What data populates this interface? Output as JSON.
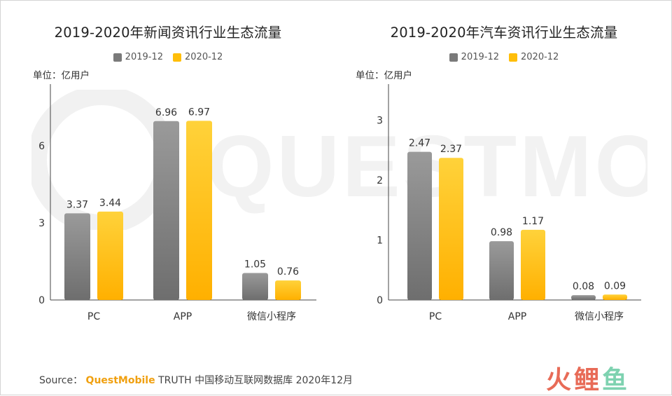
{
  "watermark": {
    "text": "QUESTMOBILE"
  },
  "source": {
    "prefix": "Source：",
    "brand": "QuestMobile",
    "suffix": "TRUTH 中国移动互联网数据库 2020年12月"
  },
  "corner_logo": {
    "chars": [
      "火",
      "鲤",
      "鱼"
    ]
  },
  "colors": {
    "series_2019": "#7a7a7a",
    "series_2020": "#ffbe0a",
    "axis": "#333333",
    "text": "#333333"
  },
  "chart_data": [
    {
      "type": "bar",
      "title": "2019-2020年新闻资讯行业生态流量",
      "unit_label": "单位：亿用户",
      "categories": [
        "PC",
        "APP",
        "微信小程序"
      ],
      "series": [
        {
          "name": "2019-12",
          "values": [
            3.37,
            6.96,
            1.05
          ],
          "value_labels": [
            "3.37",
            "6.96",
            "1.05"
          ]
        },
        {
          "name": "2020-12",
          "values": [
            3.44,
            6.97,
            0.76
          ],
          "value_labels": [
            "3.44",
            "6.97",
            "0.76"
          ]
        }
      ],
      "yticks": [
        "0",
        "3",
        "6"
      ],
      "ylim": [
        0,
        8.4
      ],
      "grid": false,
      "legend": "top-center"
    },
    {
      "type": "bar",
      "title": "2019-2020年汽车资讯行业生态流量",
      "unit_label": "单位：亿用户",
      "categories": [
        "PC",
        "APP",
        "微信小程序"
      ],
      "series": [
        {
          "name": "2019-12",
          "values": [
            2.47,
            0.98,
            0.08
          ],
          "value_labels": [
            "2.47",
            "0.98",
            "0.08"
          ]
        },
        {
          "name": "2020-12",
          "values": [
            2.37,
            1.17,
            0.09
          ],
          "value_labels": [
            "2.37",
            "1.17",
            "0.09"
          ]
        }
      ],
      "yticks": [
        "0",
        "1",
        "2",
        "3"
      ],
      "ylim": [
        0,
        3.6
      ],
      "grid": false,
      "legend": "top-center"
    }
  ]
}
